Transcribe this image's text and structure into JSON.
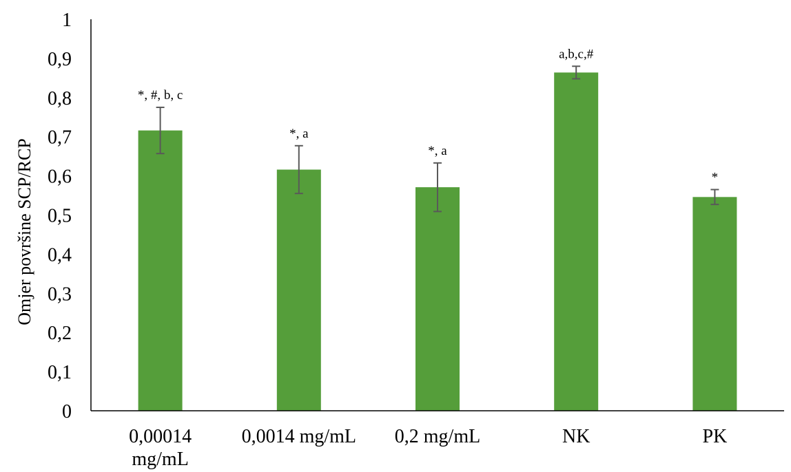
{
  "chart_data": {
    "type": "bar",
    "title": "",
    "xlabel": "",
    "ylabel": "Omjer površine SCP/RCP",
    "ylim": [
      0,
      1
    ],
    "yticks": [
      "0",
      "0,1",
      "0,2",
      "0,3",
      "0,4",
      "0,5",
      "0,6",
      "0,7",
      "0,8",
      "0,9",
      "1"
    ],
    "ytick_values": [
      0,
      0.1,
      0.2,
      0.3,
      0.4,
      0.5,
      0.6,
      0.7,
      0.8,
      0.9,
      1.0
    ],
    "categories": [
      [
        "0,00014",
        "mg/mL"
      ],
      [
        "0,0014 mg/mL"
      ],
      [
        "0,2 mg/mL"
      ],
      [
        "NK"
      ],
      [
        "PK"
      ]
    ],
    "values": [
      0.716,
      0.616,
      0.571,
      0.864,
      0.546
    ],
    "errors": [
      0.059,
      0.061,
      0.062,
      0.016,
      0.019
    ],
    "annotations": [
      "*, #, b, c",
      "*, a",
      "*, a",
      "a,b,c,#",
      "*"
    ],
    "grid": false,
    "legend": "none",
    "bar_color": "#559e3a",
    "error_bar_color": "#595959",
    "axis_color": "#000000"
  }
}
